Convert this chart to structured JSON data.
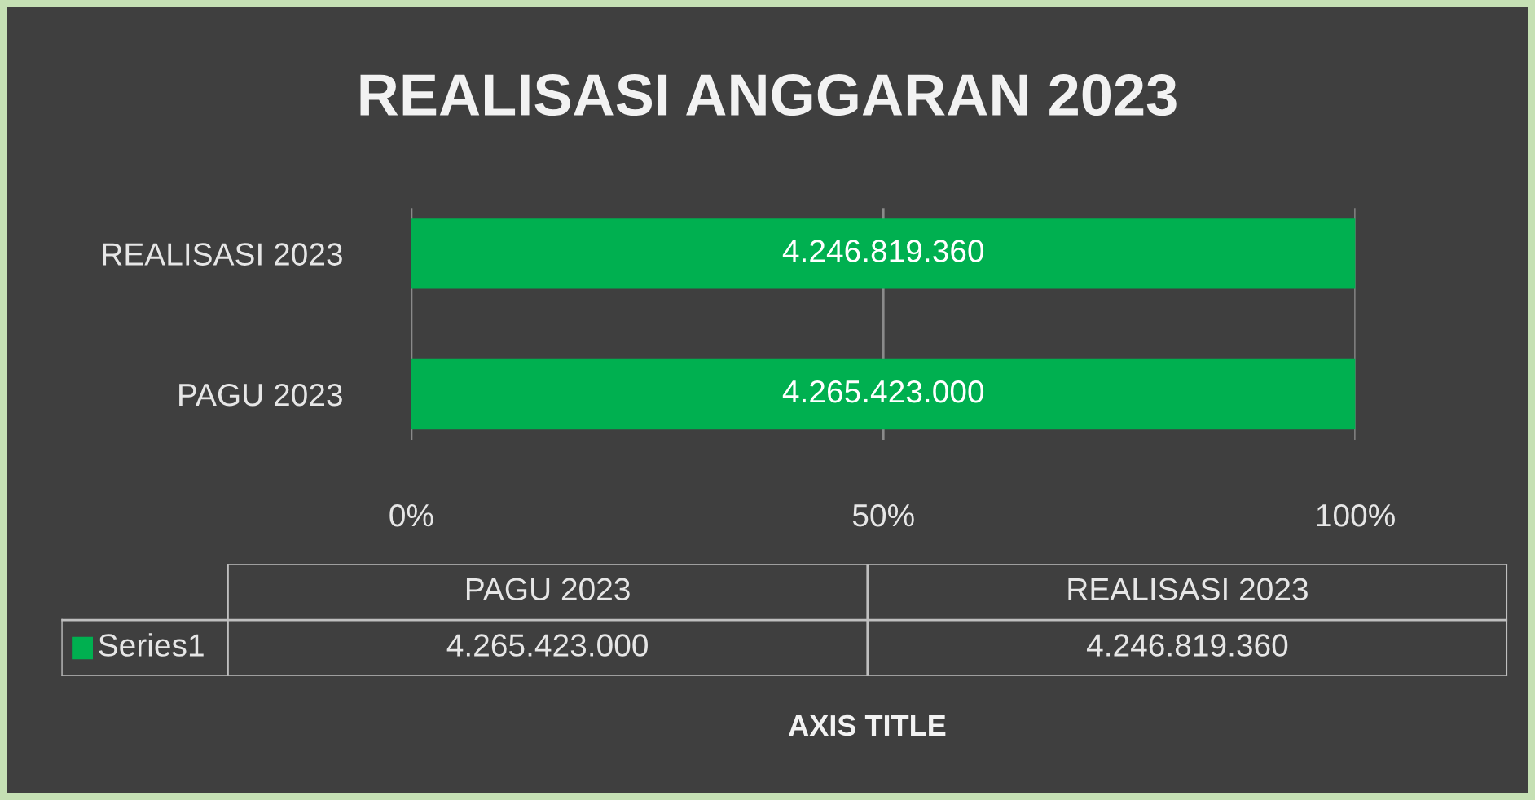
{
  "chart_data": {
    "type": "bar",
    "orientation": "horizontal",
    "title": "REALISASI ANGGARAN 2023",
    "categories": [
      "REALISASI 2023",
      "PAGU 2023"
    ],
    "series": [
      {
        "name": "Series1",
        "color": "#00b050",
        "values": [
          100,
          100
        ]
      }
    ],
    "xlim": [
      0,
      100
    ],
    "xticks": [
      {
        "value": 0,
        "label": "0%"
      },
      {
        "value": 50,
        "label": "50%"
      },
      {
        "value": 100,
        "label": "100%"
      }
    ],
    "annotations": [
      "4.246.819.360",
      "4.265.423.000",
      "AXIS TITLE"
    ],
    "grid": "x",
    "legend": "bottom"
  }
}
